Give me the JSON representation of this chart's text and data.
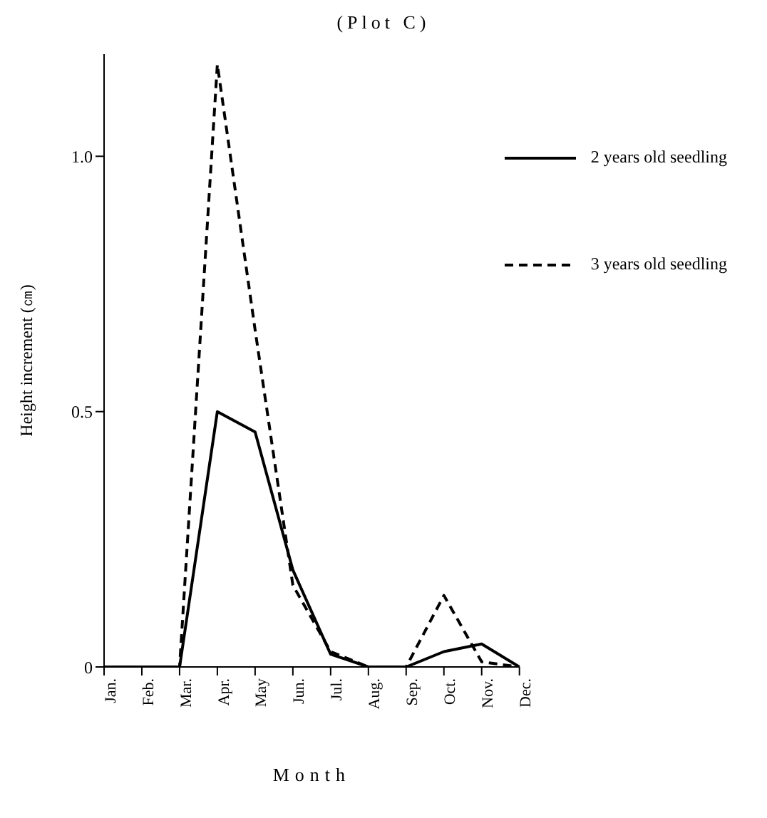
{
  "chart_data": {
    "type": "line",
    "title": "(Plot C)",
    "xlabel": "Month",
    "ylabel": "Height increment (㎝)",
    "categories": [
      "Jan.",
      "Feb.",
      "Mar.",
      "Apr.",
      "May",
      "Jun.",
      "Jul.",
      "Aug.",
      "Sep.",
      "Oct.",
      "Nov.",
      "Dec."
    ],
    "series": [
      {
        "name": "2 years old seedling",
        "color": "#000000",
        "line_style": "solid",
        "values": [
          0,
          0,
          0,
          0.5,
          0.46,
          0.19,
          0.025,
          0,
          0,
          0.03,
          0.045,
          0
        ]
      },
      {
        "name": "3 years old seedling",
        "color": "#000000",
        "line_style": "dashed",
        "values": [
          0,
          0,
          0,
          1.18,
          0.66,
          0.16,
          0.03,
          0,
          0,
          0.14,
          0.01,
          0
        ]
      }
    ],
    "ylim": [
      0,
      1.2
    ],
    "yticks": [
      {
        "value": 0,
        "label": "0"
      },
      {
        "value": 0.5,
        "label": "0.5"
      },
      {
        "value": 1,
        "label": "1.0"
      }
    ],
    "grid": false,
    "legend": "top right",
    "marker": "none"
  }
}
